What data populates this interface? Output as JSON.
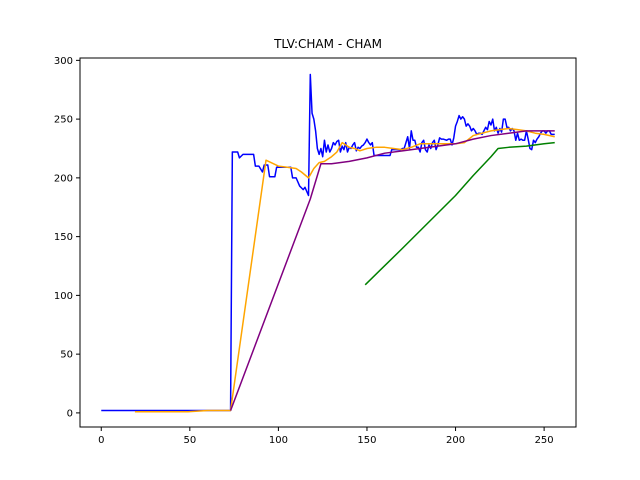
{
  "chart_data": {
    "type": "line",
    "title": "TLV:CHAM - CHAM",
    "xlabel": "",
    "ylabel": "",
    "xlim": [
      -12,
      268
    ],
    "ylim": [
      -12,
      302
    ],
    "xticks": [
      0,
      50,
      100,
      150,
      200,
      250
    ],
    "yticks": [
      0,
      50,
      100,
      150,
      200,
      250,
      300
    ],
    "grid": false,
    "legend": "none",
    "series": [
      {
        "color": "#0000ff",
        "points": [
          [
            0,
            2
          ],
          [
            73,
            2
          ],
          [
            74,
            222
          ],
          [
            77,
            222
          ],
          [
            78,
            217
          ],
          [
            80,
            220
          ],
          [
            86,
            220
          ],
          [
            87,
            210
          ],
          [
            89,
            210
          ],
          [
            91,
            205
          ],
          [
            92,
            211
          ],
          [
            94,
            211
          ],
          [
            95,
            201
          ],
          [
            98,
            201
          ],
          [
            99,
            209
          ],
          [
            101,
            209
          ],
          [
            102,
            209
          ],
          [
            103,
            209
          ],
          [
            105,
            209
          ],
          [
            107,
            209
          ],
          [
            108,
            200
          ],
          [
            110,
            200
          ],
          [
            112,
            193
          ],
          [
            114,
            190
          ],
          [
            115,
            192
          ],
          [
            117,
            185
          ],
          [
            118,
            288
          ],
          [
            119,
            255
          ],
          [
            120,
            250
          ],
          [
            121,
            240
          ],
          [
            122,
            225
          ],
          [
            123,
            220
          ],
          [
            124,
            225
          ],
          [
            125,
            218
          ],
          [
            126,
            232
          ],
          [
            127,
            222
          ],
          [
            128,
            228
          ],
          [
            129,
            222
          ],
          [
            130,
            225
          ],
          [
            131,
            230
          ],
          [
            132,
            228
          ],
          [
            133,
            231
          ],
          [
            134,
            232
          ],
          [
            135,
            222
          ],
          [
            136,
            227
          ],
          [
            137,
            224
          ],
          [
            138,
            230
          ],
          [
            139,
            222
          ],
          [
            140,
            226
          ],
          [
            141,
            225
          ],
          [
            142,
            228
          ],
          [
            143,
            230
          ],
          [
            144,
            223
          ],
          [
            145,
            226
          ],
          [
            146,
            225
          ],
          [
            147,
            227
          ],
          [
            148,
            228
          ],
          [
            149,
            230
          ],
          [
            150,
            233
          ],
          [
            151,
            230
          ],
          [
            152,
            228
          ],
          [
            153,
            230
          ],
          [
            154,
            219
          ],
          [
            157,
            219
          ],
          [
            160,
            219
          ],
          [
            163,
            219
          ],
          [
            164,
            224
          ],
          [
            166,
            224
          ],
          [
            169,
            224
          ],
          [
            170,
            225
          ],
          [
            171,
            225
          ],
          [
            172,
            230
          ],
          [
            173,
            235
          ],
          [
            174,
            225
          ],
          [
            175,
            240
          ],
          [
            176,
            232
          ],
          [
            177,
            232
          ],
          [
            178,
            226
          ],
          [
            179,
            226
          ],
          [
            180,
            222
          ],
          [
            181,
            230
          ],
          [
            182,
            232
          ],
          [
            183,
            224
          ],
          [
            184,
            222
          ],
          [
            185,
            228
          ],
          [
            186,
            225
          ],
          [
            187,
            230
          ],
          [
            188,
            232
          ],
          [
            189,
            224
          ],
          [
            190,
            228
          ],
          [
            191,
            234
          ],
          [
            192,
            233
          ],
          [
            193,
            233
          ],
          [
            195,
            232
          ],
          [
            196,
            233
          ],
          [
            197,
            233
          ],
          [
            198,
            228
          ],
          [
            199,
            234
          ],
          [
            200,
            244
          ],
          [
            201,
            248
          ],
          [
            202,
            253
          ],
          [
            203,
            250
          ],
          [
            204,
            252
          ],
          [
            205,
            250
          ],
          [
            206,
            244
          ],
          [
            207,
            246
          ],
          [
            208,
            244
          ],
          [
            209,
            240
          ],
          [
            210,
            242
          ],
          [
            211,
            240
          ],
          [
            212,
            237
          ],
          [
            213,
            238
          ],
          [
            214,
            238
          ],
          [
            215,
            237
          ],
          [
            216,
            240
          ],
          [
            217,
            243
          ],
          [
            218,
            241
          ],
          [
            219,
            248
          ],
          [
            220,
            245
          ],
          [
            221,
            250
          ],
          [
            222,
            240
          ],
          [
            223,
            243
          ],
          [
            224,
            238
          ],
          [
            225,
            242
          ],
          [
            226,
            239
          ],
          [
            227,
            250
          ],
          [
            228,
            250
          ],
          [
            229,
            243
          ],
          [
            230,
            243
          ],
          [
            231,
            240
          ],
          [
            232,
            242
          ],
          [
            233,
            240
          ],
          [
            234,
            232
          ],
          [
            235,
            238
          ],
          [
            236,
            232
          ],
          [
            237,
            233
          ],
          [
            238,
            232
          ],
          [
            239,
            232
          ],
          [
            240,
            240
          ],
          [
            241,
            233
          ],
          [
            242,
            225
          ],
          [
            243,
            224
          ],
          [
            244,
            232
          ],
          [
            245,
            230
          ],
          [
            246,
            233
          ],
          [
            247,
            235
          ],
          [
            248,
            238
          ],
          [
            249,
            240
          ],
          [
            250,
            240
          ],
          [
            251,
            238
          ],
          [
            252,
            240
          ],
          [
            253,
            240
          ],
          [
            254,
            237
          ],
          [
            255,
            237
          ],
          [
            256,
            237
          ]
        ]
      },
      {
        "color": "#ffa500",
        "points": [
          [
            19,
            1
          ],
          [
            30,
            1
          ],
          [
            40,
            1
          ],
          [
            49,
            1
          ],
          [
            60,
            2
          ],
          [
            73,
            2
          ],
          [
            93,
            215
          ],
          [
            100,
            210
          ],
          [
            105,
            209
          ],
          [
            110,
            208
          ],
          [
            113,
            205
          ],
          [
            117,
            200
          ],
          [
            120,
            208
          ],
          [
            123,
            213
          ],
          [
            126,
            214
          ],
          [
            130,
            218
          ],
          [
            133,
            222
          ],
          [
            136,
            230
          ],
          [
            140,
            226
          ],
          [
            143,
            225
          ],
          [
            146,
            223
          ],
          [
            150,
            225
          ],
          [
            155,
            226
          ],
          [
            160,
            226
          ],
          [
            165,
            225
          ],
          [
            170,
            224
          ],
          [
            175,
            226
          ],
          [
            180,
            229
          ],
          [
            185,
            229
          ],
          [
            190,
            229
          ],
          [
            195,
            229
          ],
          [
            200,
            229
          ],
          [
            205,
            230
          ],
          [
            210,
            236
          ],
          [
            215,
            238
          ],
          [
            220,
            240
          ],
          [
            225,
            241
          ],
          [
            230,
            242
          ],
          [
            235,
            241
          ],
          [
            240,
            240
          ],
          [
            245,
            238
          ],
          [
            250,
            237
          ],
          [
            256,
            235
          ]
        ]
      },
      {
        "color": "#800080",
        "points": [
          [
            73,
            2
          ],
          [
            118,
            182
          ],
          [
            124,
            212
          ],
          [
            130,
            212
          ],
          [
            140,
            214
          ],
          [
            150,
            217
          ],
          [
            160,
            221
          ],
          [
            170,
            223
          ],
          [
            180,
            225
          ],
          [
            190,
            227
          ],
          [
            200,
            229
          ],
          [
            210,
            233
          ],
          [
            220,
            236
          ],
          [
            230,
            238
          ],
          [
            240,
            240
          ],
          [
            250,
            240
          ],
          [
            256,
            240
          ]
        ]
      },
      {
        "color": "#008000",
        "points": [
          [
            149,
            109
          ],
          [
            170,
            140
          ],
          [
            180,
            155
          ],
          [
            190,
            170
          ],
          [
            200,
            185
          ],
          [
            210,
            202
          ],
          [
            220,
            218
          ],
          [
            224,
            225
          ],
          [
            230,
            226
          ],
          [
            240,
            227
          ],
          [
            250,
            229
          ],
          [
            256,
            230
          ]
        ]
      }
    ]
  }
}
